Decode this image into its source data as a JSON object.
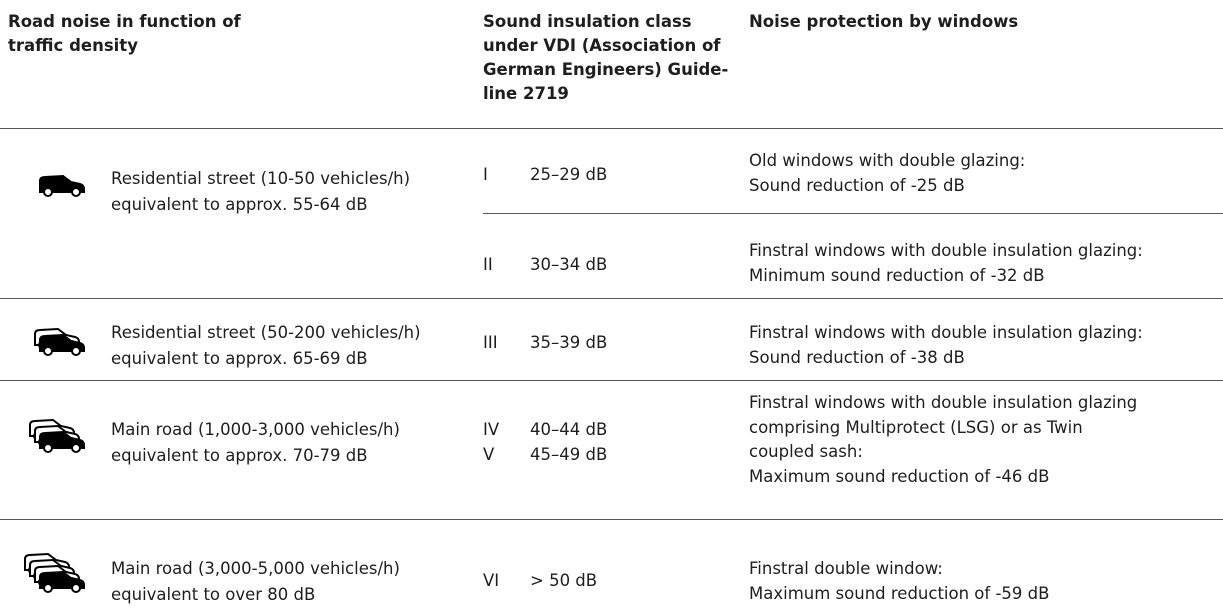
{
  "header": {
    "road": [
      "Road noise in function of",
      "traffic density"
    ],
    "class": [
      "Sound insulation class",
      "under VDI (Association of",
      "German Engineers) Guide-",
      "line 2719"
    ],
    "protection": [
      "Noise protection by windows"
    ]
  },
  "rows": [
    {
      "road": [
        "Residential street (10-50 vehicles/h)",
        "equivalent to approx. 55-64 dB"
      ],
      "groups": [
        {
          "classes": [
            {
              "class": "I",
              "range": "25–29 dB"
            }
          ],
          "protection": [
            "Old windows with double glazing:",
            "Sound reduction of -25 dB"
          ]
        },
        {
          "classes": [
            {
              "class": "II",
              "range": "30–34 dB"
            }
          ],
          "protection": [
            "Finstral windows with double insulation glazing:",
            "Minimum sound reduction of -32 dB"
          ]
        }
      ]
    },
    {
      "road": [
        "Residential street (50-200 vehicles/h)",
        "equivalent to approx. 65-69 dB"
      ],
      "groups": [
        {
          "classes": [
            {
              "class": "III",
              "range": "35–39 dB"
            }
          ],
          "protection": [
            "Finstral windows with double insulation glazing:",
            "Sound reduction of -38 dB"
          ]
        }
      ]
    },
    {
      "road": [
        "Main road (1,000-3,000 vehicles/h)",
        "equivalent to approx. 70-79 dB"
      ],
      "groups": [
        {
          "classes": [
            {
              "class": "IV",
              "range": "40–44 dB"
            },
            {
              "class": "V",
              "range": "45–49 dB"
            }
          ],
          "protection": [
            "Finstral windows with double insulation glazing",
            "comprising Multiprotect (LSG) or as Twin",
            "coupled sash:",
            "Maximum sound reduction of -46 dB"
          ]
        }
      ]
    },
    {
      "road": [
        "Main road (3,000-5,000 vehicles/h)",
        "equivalent to over 80 dB"
      ],
      "groups": [
        {
          "classes": [
            {
              "class": "VI",
              "range": "> 50 dB"
            }
          ],
          "protection": [
            "Finstral double window:",
            "Maximum sound reduction of -59 dB"
          ]
        }
      ]
    }
  ]
}
